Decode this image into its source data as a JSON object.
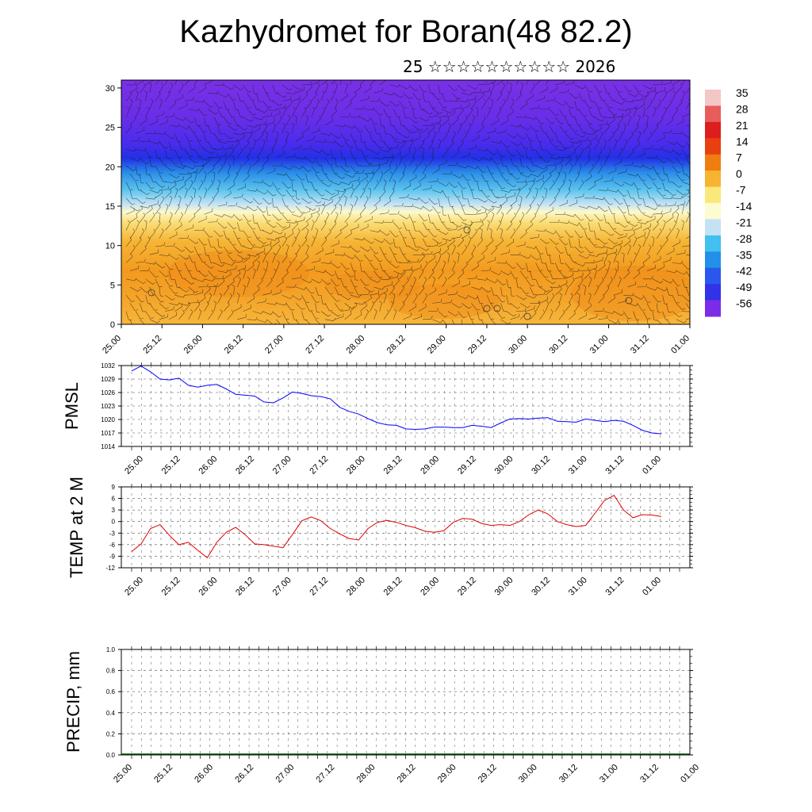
{
  "title": "Kazhydromet for Boran(48 82.2)",
  "subtitle": "25 ☆☆☆☆☆☆☆☆☆☆ 2026",
  "chart_data": [
    {
      "type": "heatmap",
      "name": "cross-section",
      "description_of_axes": "time vs level",
      "xlabels": [
        "25.00",
        "25.12",
        "26.00",
        "26.12",
        "27.00",
        "27.12",
        "28.00",
        "28.12",
        "29.00",
        "29.12",
        "30.00",
        "30.12",
        "31.00",
        "31.12",
        "01.00"
      ],
      "yticks": [
        0,
        5,
        10,
        15,
        20,
        25,
        30
      ],
      "ylim": [
        0,
        31
      ],
      "level_temperature_profile": [
        {
          "y": 0,
          "t": 0
        },
        {
          "y": 5,
          "t": 2
        },
        {
          "y": 10,
          "t": -2
        },
        {
          "y": 13.5,
          "t": -10
        },
        {
          "y": 15,
          "t": -16
        },
        {
          "y": 17,
          "t": -28
        },
        {
          "y": 19,
          "t": -42
        },
        {
          "y": 21,
          "t": -56
        },
        {
          "y": 24,
          "t": -60
        },
        {
          "y": 31,
          "t": -62
        }
      ],
      "colorbar": {
        "labels": [
          "35",
          "28",
          "21",
          "14",
          "7",
          "0",
          "-7",
          "-14",
          "-21",
          "-28",
          "-35",
          "-42",
          "-49",
          "-56"
        ],
        "colors": [
          "#f4c6c6",
          "#e85c5c",
          "#dd1e1e",
          "#e84010",
          "#f07d10",
          "#f7b430",
          "#fbe87a",
          "#fdfbd2",
          "#c4e2f4",
          "#42c0f0",
          "#2290ea",
          "#2a58ec",
          "#3232e8",
          "#7c2ce8"
        ]
      },
      "wind_barbs": true
    },
    {
      "type": "line",
      "name": "PMSL",
      "ylabel": "PMSL",
      "xlabels": [
        "25.00",
        "25.12",
        "26.00",
        "26.12",
        "27.00",
        "27.12",
        "28.00",
        "28.12",
        "29.00",
        "29.12",
        "30.00",
        "30.12",
        "31.00",
        "31.12",
        "01.00"
      ],
      "yticks": [
        "1032",
        "1029",
        "1026",
        "1023",
        "1020",
        "1017",
        "1014"
      ],
      "ylim": [
        1014,
        1032
      ],
      "color": "#0000ff",
      "x": [
        0,
        1,
        2,
        3,
        4,
        5,
        6,
        7,
        8,
        9,
        10,
        11,
        12,
        13,
        14,
        15,
        16,
        17,
        18,
        19,
        20,
        21,
        22,
        23,
        24,
        25,
        26,
        27,
        28,
        29,
        30,
        31,
        32,
        33,
        34,
        35,
        36,
        37,
        38,
        39,
        40,
        41,
        42,
        43,
        44,
        45,
        46,
        47,
        48,
        49,
        50,
        51,
        52,
        53,
        54,
        55,
        56
      ],
      "values": [
        1030.8,
        1031.9,
        1030.6,
        1029.0,
        1028.8,
        1029.2,
        1027.6,
        1027.2,
        1027.6,
        1027.8,
        1026.8,
        1025.6,
        1025.4,
        1025.2,
        1023.9,
        1023.7,
        1024.8,
        1026.1,
        1025.8,
        1025.3,
        1025.1,
        1024.6,
        1022.7,
        1021.8,
        1021.2,
        1020.2,
        1019.3,
        1018.8,
        1018.7,
        1017.9,
        1017.8,
        1017.9,
        1018.3,
        1018.3,
        1018.2,
        1018.2,
        1018.7,
        1018.5,
        1018.2,
        1019.2,
        1020.1,
        1020.2,
        1020.1,
        1020.3,
        1020.4,
        1019.6,
        1019.5,
        1019.4,
        1020.1,
        1019.8,
        1019.5,
        1019.8,
        1019.6,
        1018.7,
        1017.6,
        1017.0,
        1016.8
      ]
    },
    {
      "type": "line",
      "name": "TEMP at 2 M",
      "ylabel": "TEMP at 2 M",
      "xlabels": [
        "25.00",
        "25.12",
        "26.00",
        "26.12",
        "27.00",
        "27.12",
        "28.00",
        "28.12",
        "29.00",
        "29.12",
        "30.00",
        "30.12",
        "31.00",
        "31.12",
        "01.00"
      ],
      "yticks": [
        "9",
        "6",
        "3",
        "0",
        "-3",
        "-6",
        "-9",
        "-12"
      ],
      "ylim": [
        -12,
        9
      ],
      "color": "#e00000",
      "x": [
        0,
        1,
        2,
        3,
        4,
        5,
        6,
        7,
        8,
        9,
        10,
        11,
        12,
        13,
        14,
        15,
        16,
        17,
        18,
        19,
        20,
        21,
        22,
        23,
        24,
        25,
        26,
        27,
        28,
        29,
        30,
        31,
        32,
        33,
        34,
        35,
        36,
        37,
        38,
        39,
        40,
        41,
        42,
        43,
        44,
        45,
        46,
        47,
        48,
        49,
        50,
        51,
        52,
        53,
        54,
        55,
        56
      ],
      "values": [
        -7.8,
        -5.8,
        -1.8,
        -0.8,
        -3.6,
        -6.0,
        -5.4,
        -7.5,
        -9.4,
        -5.4,
        -2.8,
        -1.5,
        -3.4,
        -5.8,
        -6.0,
        -6.4,
        -6.8,
        -3.4,
        0.2,
        1.2,
        0.2,
        -1.8,
        -3.2,
        -4.4,
        -4.8,
        -1.8,
        -0.2,
        0.3,
        -0.2,
        -1.0,
        -1.6,
        -2.5,
        -2.8,
        -2.4,
        -0.2,
        0.8,
        0.6,
        -0.5,
        -1.0,
        -0.8,
        -1.0,
        0.0,
        1.8,
        3.0,
        2.0,
        0.0,
        -0.8,
        -1.3,
        -1.0,
        2.2,
        5.5,
        6.8,
        3.0,
        1.0,
        1.8,
        1.7,
        1.3
      ]
    },
    {
      "type": "line",
      "name": "PRECIP, mm",
      "ylabel": "PRECIP, mm",
      "xlabels": [
        "25.00",
        "25.12",
        "26.00",
        "26.12",
        "27.00",
        "27.12",
        "28.00",
        "28.12",
        "29.00",
        "29.12",
        "30.00",
        "30.12",
        "31.00",
        "31.12",
        "01.00"
      ],
      "yticks": [
        "1.0",
        "0.8",
        "0.6",
        "0.4",
        "0.2",
        "0.0"
      ],
      "ylim": [
        0,
        1
      ],
      "color": "#006400",
      "values": [
        0,
        0,
        0,
        0,
        0,
        0,
        0,
        0,
        0,
        0,
        0,
        0,
        0,
        0,
        0
      ]
    }
  ]
}
